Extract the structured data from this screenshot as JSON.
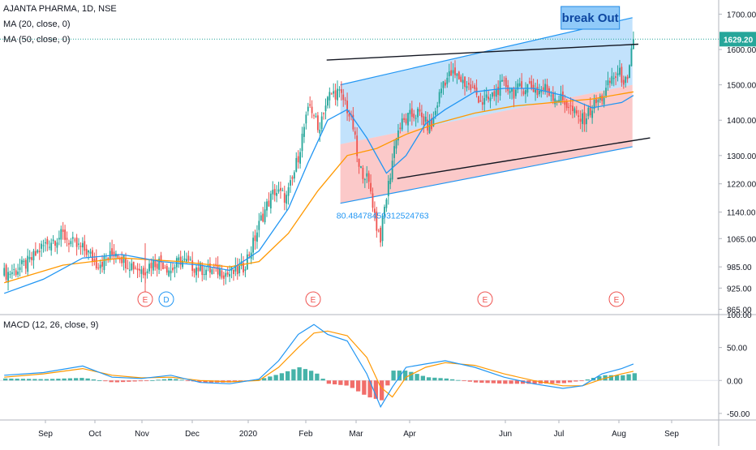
{
  "chart_data": [
    {
      "type": "candlestick",
      "title": "AJANTA PHARMA, 1D, NSE",
      "indicators": [
        "MA (20, close, 0)",
        "MA (50, close, 0)"
      ],
      "ylim": [
        850,
        1740
      ],
      "y_ticks": [
        "1700.00",
        "1600.00",
        "1500.00",
        "1400.00",
        "1300.00",
        "1220.00",
        "1140.00",
        "1065.00",
        "985.00",
        "925.00",
        "865.00"
      ],
      "x_ticks": [
        "Sep",
        "Oct",
        "Nov",
        "Dec",
        "2020",
        "Feb",
        "Mar",
        "Apr",
        "Jun",
        "Jul",
        "Aug",
        "Sep"
      ],
      "last_price": "1629.20",
      "colors": {
        "up": "#26a69a",
        "down": "#ef5350",
        "ma20": "#2196f3",
        "ma50": "#ff9800",
        "price_line": "#26a69a"
      },
      "annotations": {
        "breakout_label": "break Out",
        "angle_label": "80.48478459312524763"
      },
      "earnings_markers": [
        "E",
        "D",
        "E",
        "E",
        "E"
      ],
      "price_path": [
        [
          0,
          965
        ],
        [
          6,
          975
        ],
        [
          13,
          1000
        ],
        [
          19,
          1040
        ],
        [
          24,
          1060
        ],
        [
          30,
          1075
        ],
        [
          36,
          1045
        ],
        [
          42,
          1030
        ],
        [
          47,
          995
        ],
        [
          52,
          1005
        ],
        [
          57,
          1030
        ],
        [
          62,
          1000
        ],
        [
          67,
          985
        ],
        [
          71,
          975
        ],
        [
          75,
          995
        ],
        [
          80,
          1000
        ],
        [
          85,
          975
        ],
        [
          90,
          1005
        ],
        [
          95,
          990
        ],
        [
          100,
          980
        ],
        [
          105,
          975
        ],
        [
          110,
          975
        ],
        [
          114,
          965
        ],
        [
          118,
          970
        ],
        [
          122,
          985
        ],
        [
          127,
          1050
        ],
        [
          131,
          1120
        ],
        [
          135,
          1170
        ],
        [
          138,
          1200
        ],
        [
          141,
          1190
        ],
        [
          144,
          1180
        ],
        [
          147,
          1230
        ],
        [
          150,
          1300
        ],
        [
          153,
          1380
        ],
        [
          156,
          1440
        ],
        [
          158,
          1420
        ],
        [
          160,
          1370
        ],
        [
          163,
          1430
        ],
        [
          166,
          1470
        ],
        [
          170,
          1480
        ],
        [
          174,
          1450
        ],
        [
          178,
          1380
        ],
        [
          181,
          1260
        ],
        [
          184,
          1250
        ],
        [
          187,
          1200
        ],
        [
          190,
          1100
        ],
        [
          192,
          1070
        ],
        [
          194,
          1150
        ],
        [
          197,
          1250
        ],
        [
          200,
          1360
        ],
        [
          203,
          1390
        ],
        [
          207,
          1410
        ],
        [
          211,
          1420
        ],
        [
          215,
          1390
        ],
        [
          218,
          1380
        ],
        [
          221,
          1450
        ],
        [
          224,
          1510
        ],
        [
          228,
          1530
        ],
        [
          232,
          1520
        ],
        [
          236,
          1500
        ],
        [
          240,
          1480
        ],
        [
          244,
          1450
        ],
        [
          248,
          1460
        ],
        [
          252,
          1490
        ],
        [
          256,
          1500
        ],
        [
          260,
          1480
        ],
        [
          264,
          1490
        ],
        [
          268,
          1500
        ],
        [
          272,
          1480
        ],
        [
          276,
          1490
        ],
        [
          280,
          1470
        ],
        [
          284,
          1460
        ],
        [
          288,
          1440
        ],
        [
          292,
          1410
        ],
        [
          295,
          1400
        ],
        [
          298,
          1420
        ],
        [
          302,
          1450
        ],
        [
          306,
          1470
        ],
        [
          310,
          1520
        ],
        [
          314,
          1530
        ],
        [
          318,
          1500
        ],
        [
          321,
          1629.2
        ]
      ],
      "ma20": [
        [
          0,
          910
        ],
        [
          20,
          950
        ],
        [
          40,
          1010
        ],
        [
          60,
          1020
        ],
        [
          80,
          1000
        ],
        [
          100,
          990
        ],
        [
          115,
          975
        ],
        [
          130,
          1030
        ],
        [
          145,
          1150
        ],
        [
          155,
          1280
        ],
        [
          165,
          1400
        ],
        [
          175,
          1430
        ],
        [
          185,
          1350
        ],
        [
          195,
          1250
        ],
        [
          205,
          1300
        ],
        [
          215,
          1390
        ],
        [
          225,
          1430
        ],
        [
          240,
          1480
        ],
        [
          255,
          1490
        ],
        [
          270,
          1490
        ],
        [
          285,
          1470
        ],
        [
          300,
          1435
        ],
        [
          315,
          1450
        ],
        [
          321,
          1470
        ]
      ],
      "ma50": [
        [
          0,
          940
        ],
        [
          30,
          990
        ],
        [
          60,
          1010
        ],
        [
          90,
          1000
        ],
        [
          115,
          985
        ],
        [
          130,
          1000
        ],
        [
          145,
          1080
        ],
        [
          160,
          1200
        ],
        [
          175,
          1300
        ],
        [
          190,
          1320
        ],
        [
          205,
          1360
        ],
        [
          220,
          1390
        ],
        [
          240,
          1420
        ],
        [
          260,
          1440
        ],
        [
          280,
          1450
        ],
        [
          300,
          1460
        ],
        [
          321,
          1480
        ]
      ],
      "channel": {
        "upper": [
          [
            172,
            1500
          ],
          [
            321,
            1690
          ]
        ],
        "lower": [
          [
            172,
            1165
          ],
          [
            321,
            1325
          ]
        ],
        "middle": [
          [
            172,
            1332
          ],
          [
            321,
            1500
          ]
        ]
      },
      "trendlines": {
        "resistance": [
          [
            165,
            1570
          ],
          [
            324,
            1615
          ]
        ],
        "support": [
          [
            201,
            1235
          ],
          [
            330,
            1350
          ]
        ]
      }
    },
    {
      "type": "macd",
      "title": "MACD (12, 26, close, 9)",
      "ylim": [
        -60,
        100
      ],
      "y_ticks": [
        "100.00",
        "50.00",
        "0.00",
        "-50.00"
      ],
      "macd": [
        [
          0,
          8
        ],
        [
          20,
          12
        ],
        [
          40,
          22
        ],
        [
          55,
          5
        ],
        [
          70,
          3
        ],
        [
          85,
          8
        ],
        [
          100,
          -3
        ],
        [
          115,
          -5
        ],
        [
          130,
          2
        ],
        [
          140,
          30
        ],
        [
          150,
          70
        ],
        [
          158,
          85
        ],
        [
          165,
          70
        ],
        [
          175,
          60
        ],
        [
          185,
          10
        ],
        [
          192,
          -40
        ],
        [
          198,
          -10
        ],
        [
          205,
          20
        ],
        [
          215,
          25
        ],
        [
          225,
          30
        ],
        [
          240,
          20
        ],
        [
          255,
          5
        ],
        [
          270,
          -5
        ],
        [
          285,
          -12
        ],
        [
          295,
          -8
        ],
        [
          305,
          10
        ],
        [
          315,
          18
        ],
        [
          321,
          25
        ]
      ],
      "signal": [
        [
          0,
          5
        ],
        [
          20,
          10
        ],
        [
          40,
          18
        ],
        [
          55,
          8
        ],
        [
          70,
          4
        ],
        [
          85,
          5
        ],
        [
          100,
          0
        ],
        [
          115,
          -2
        ],
        [
          130,
          0
        ],
        [
          140,
          20
        ],
        [
          150,
          50
        ],
        [
          158,
          72
        ],
        [
          165,
          75
        ],
        [
          175,
          68
        ],
        [
          185,
          35
        ],
        [
          192,
          -10
        ],
        [
          198,
          -25
        ],
        [
          205,
          5
        ],
        [
          215,
          20
        ],
        [
          225,
          27
        ],
        [
          240,
          23
        ],
        [
          255,
          10
        ],
        [
          270,
          0
        ],
        [
          285,
          -8
        ],
        [
          295,
          -8
        ],
        [
          305,
          2
        ],
        [
          315,
          10
        ],
        [
          321,
          14
        ]
      ]
    }
  ]
}
